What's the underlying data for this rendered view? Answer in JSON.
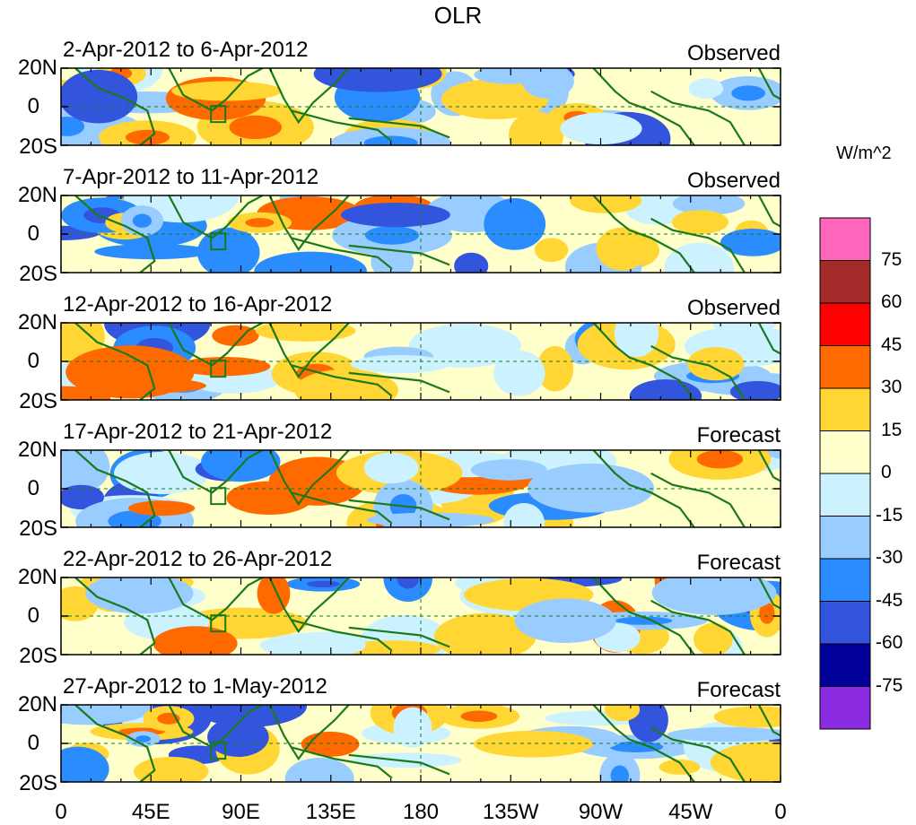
{
  "title": "OLR",
  "unit": "W/m^2",
  "panels": [
    {
      "date": "2-Apr-2012 to 6-Apr-2012",
      "type": "Observed"
    },
    {
      "date": "7-Apr-2012 to 11-Apr-2012",
      "type": "Observed"
    },
    {
      "date": "12-Apr-2012 to 16-Apr-2012",
      "type": "Observed"
    },
    {
      "date": "17-Apr-2012 to 21-Apr-2012",
      "type": "Forecast"
    },
    {
      "date": "22-Apr-2012 to 26-Apr-2012",
      "type": "Forecast"
    },
    {
      "date": "27-Apr-2012 to 1-May-2012",
      "type": "Forecast"
    }
  ],
  "lat_labels": [
    "20N",
    "0",
    "20S"
  ],
  "lon_labels": [
    "0",
    "45E",
    "90E",
    "135E",
    "180",
    "135W",
    "90W",
    "45W",
    "0"
  ],
  "legend": {
    "ticks": [
      "75",
      "60",
      "45",
      "30",
      "15",
      "0",
      "-15",
      "-30",
      "-45",
      "-60",
      "-75"
    ],
    "colors": [
      "#ff66bb",
      "#a52a2a",
      "#ff0000",
      "#ff6a00",
      "#ffd633",
      "#ffffcc",
      "#ccf2ff",
      "#99ccff",
      "#2b8cff",
      "#3355dd",
      "#000099",
      "#8a2be2"
    ]
  },
  "colors": {
    "coast": "#1a7a1a",
    "neutral": "#ffffcc"
  }
}
